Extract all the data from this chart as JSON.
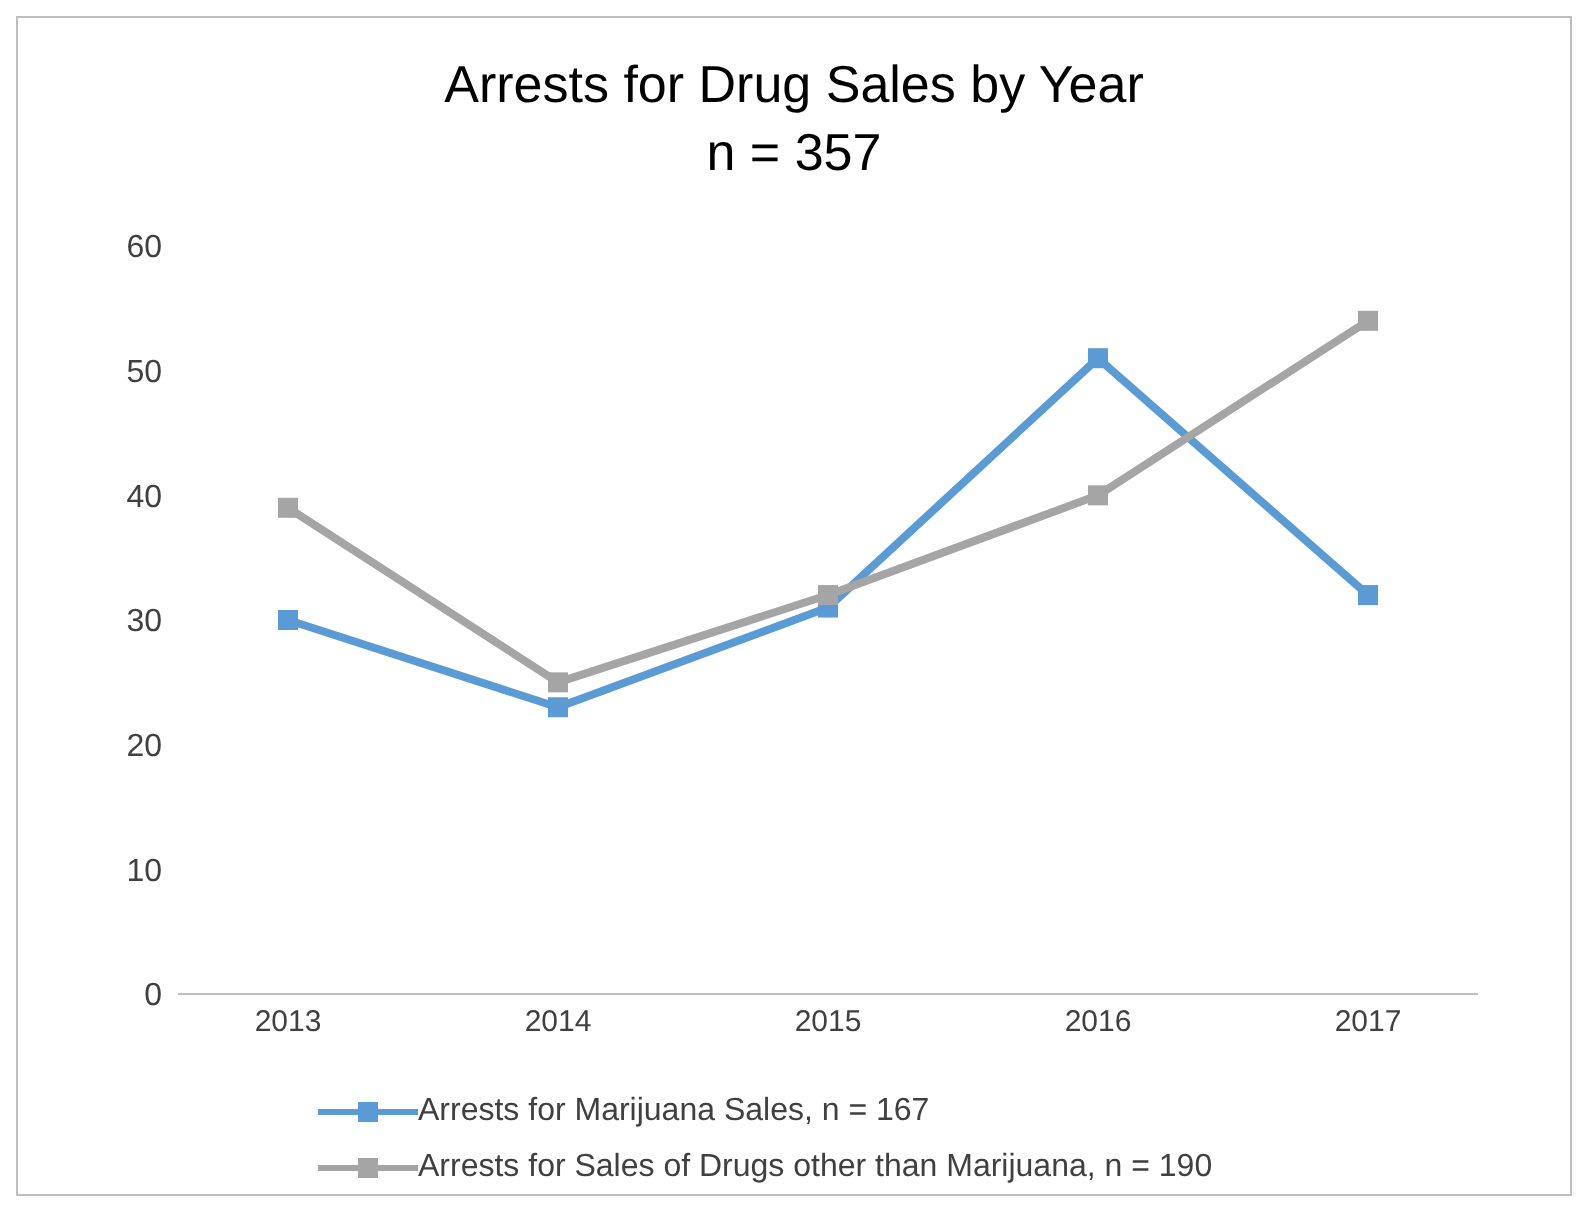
{
  "chart_data": {
    "type": "line",
    "title": "Arrests for Drug Sales by Year",
    "subtitle": "n = 357",
    "categories": [
      "2013",
      "2014",
      "2015",
      "2016",
      "2017"
    ],
    "series": [
      {
        "name": "Arrests for Marijuana Sales, n = 167",
        "color": "#5b9bd5",
        "values": [
          30,
          23,
          31,
          51,
          32
        ]
      },
      {
        "name": "Arrests for Sales of Drugs other than Marijuana, n = 190",
        "color": "#a5a5a5",
        "values": [
          39,
          25,
          32,
          40,
          54
        ]
      }
    ],
    "ylim": [
      0,
      60
    ],
    "yticks": [
      0,
      10,
      20,
      30,
      40,
      50,
      60
    ],
    "grid": false,
    "legend": "bottom",
    "marker": "square",
    "line_style": "solid"
  }
}
